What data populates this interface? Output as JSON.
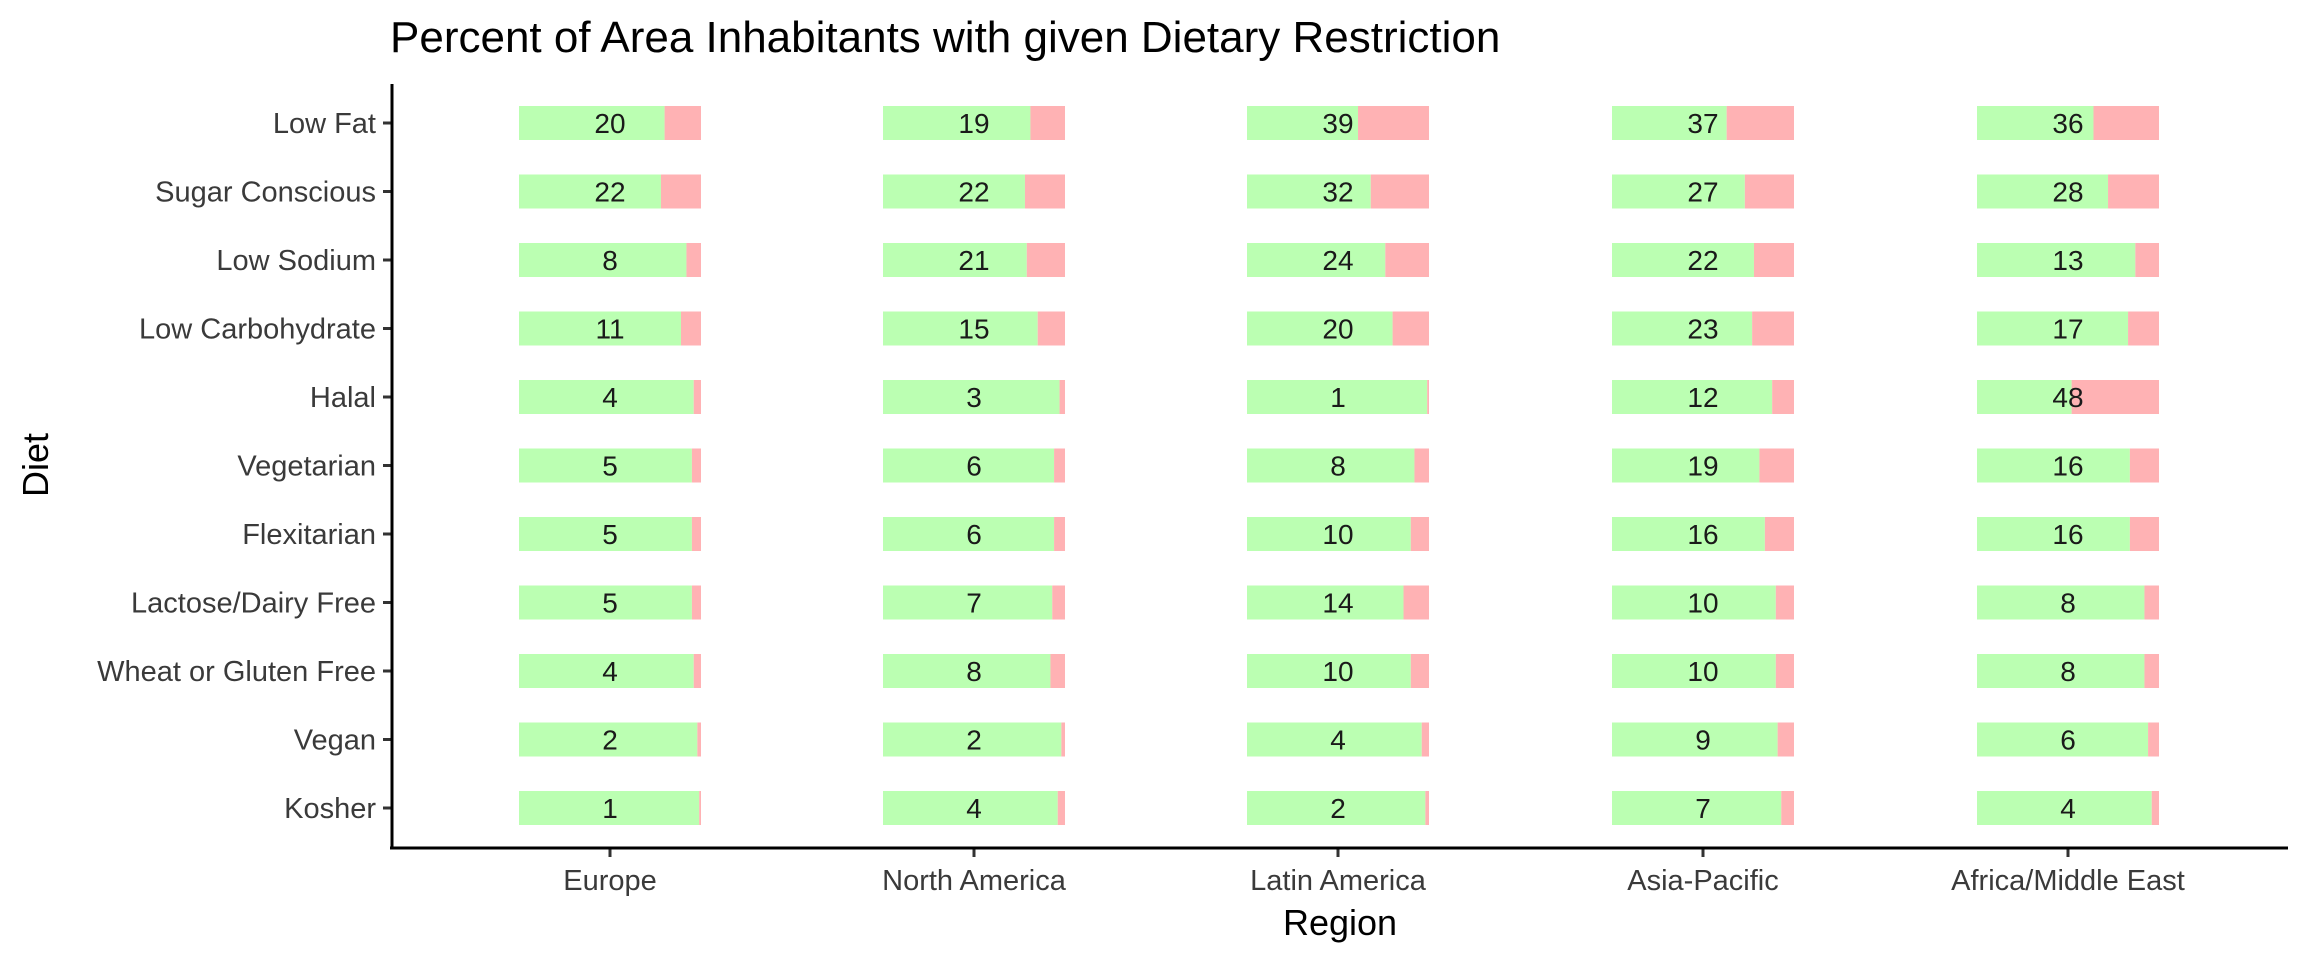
{
  "chart_data": {
    "type": "bar",
    "title": "Percent of Area Inhabitants with given Dietary Restriction",
    "xlabel": "Region",
    "ylabel": "Diet",
    "regions": [
      "Europe",
      "North America",
      "Latin America",
      "Asia-Pacific",
      "Africa/Middle East"
    ],
    "diets": [
      "Low Fat",
      "Sugar Conscious",
      "Low Sodium",
      "Low Carbohydrate",
      "Halal",
      "Vegetarian",
      "Flexitarian",
      "Lactose/Dairy Free",
      "Wheat or Gluten Free",
      "Vegan",
      "Kosher"
    ],
    "values": {
      "Europe": [
        20,
        22,
        8,
        11,
        4,
        5,
        5,
        5,
        4,
        2,
        1
      ],
      "North America": [
        19,
        22,
        21,
        15,
        3,
        6,
        6,
        7,
        8,
        2,
        4
      ],
      "Latin America": [
        39,
        32,
        24,
        20,
        1,
        8,
        10,
        14,
        10,
        4,
        2
      ],
      "Asia-Pacific": [
        37,
        27,
        22,
        23,
        12,
        19,
        16,
        10,
        10,
        9,
        7
      ],
      "Africa/Middle East": [
        36,
        28,
        13,
        17,
        48,
        16,
        16,
        8,
        8,
        6,
        4
      ]
    },
    "bar_encoding": "pink fill = percent with restriction; green fill = remaining percent",
    "colors": {
      "without": "#bbffb2",
      "with": "#ffb2b4"
    },
    "legend": "none",
    "grid": false
  }
}
